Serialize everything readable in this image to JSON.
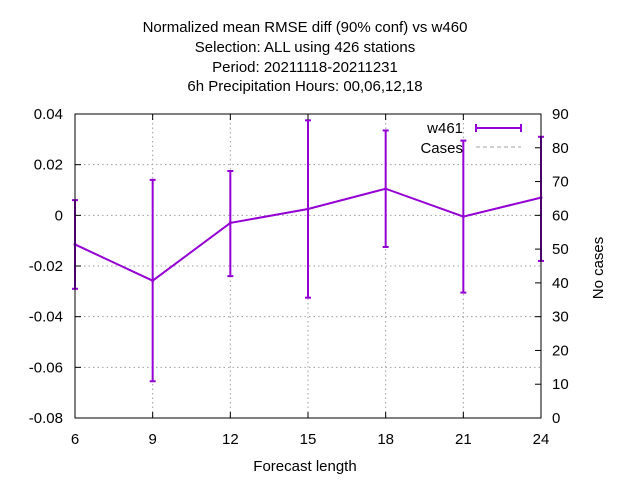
{
  "chart_data": {
    "type": "line",
    "title_lines": [
      "Normalized mean RMSE diff (90% conf) vs w460",
      "Selection: ALL using   426 stations",
      "Period: 20211118-20211231",
      "6h Precipitation   Hours:  00,06,12,18"
    ],
    "xlabel": "Forecast length",
    "ylabel": "",
    "y2label": "No cases",
    "x": [
      6,
      9,
      12,
      15,
      18,
      21,
      24
    ],
    "xlim": [
      6,
      24
    ],
    "ylim": [
      -0.08,
      0.04
    ],
    "y2lim": [
      0,
      90
    ],
    "x_ticks": [
      "6",
      "9",
      "12",
      "15",
      "18",
      "21",
      "24"
    ],
    "y_ticks": [
      "-0.08",
      "-0.06",
      "-0.04",
      "-0.02",
      "0",
      "0.02",
      "0.04"
    ],
    "y2_ticks": [
      "0",
      "10",
      "20",
      "30",
      "40",
      "50",
      "60",
      "70",
      "80",
      "90"
    ],
    "grid": true,
    "legend_position": "top-right",
    "series": [
      {
        "name": "w461",
        "color": "#9400d3",
        "values": [
          -0.0115,
          -0.0258,
          -0.003,
          0.0025,
          0.0105,
          -0.0005,
          0.007
        ],
        "err_low": [
          -0.029,
          -0.0655,
          -0.024,
          -0.0325,
          -0.0125,
          -0.0305,
          -0.018
        ],
        "err_high": [
          0.006,
          0.014,
          0.0175,
          0.0375,
          0.0335,
          0.0295,
          0.031
        ]
      },
      {
        "name": "Cases",
        "color": "#a0a0a0",
        "axis": "y2",
        "values": [
          90,
          90,
          90,
          90,
          90,
          90,
          90
        ]
      }
    ]
  }
}
